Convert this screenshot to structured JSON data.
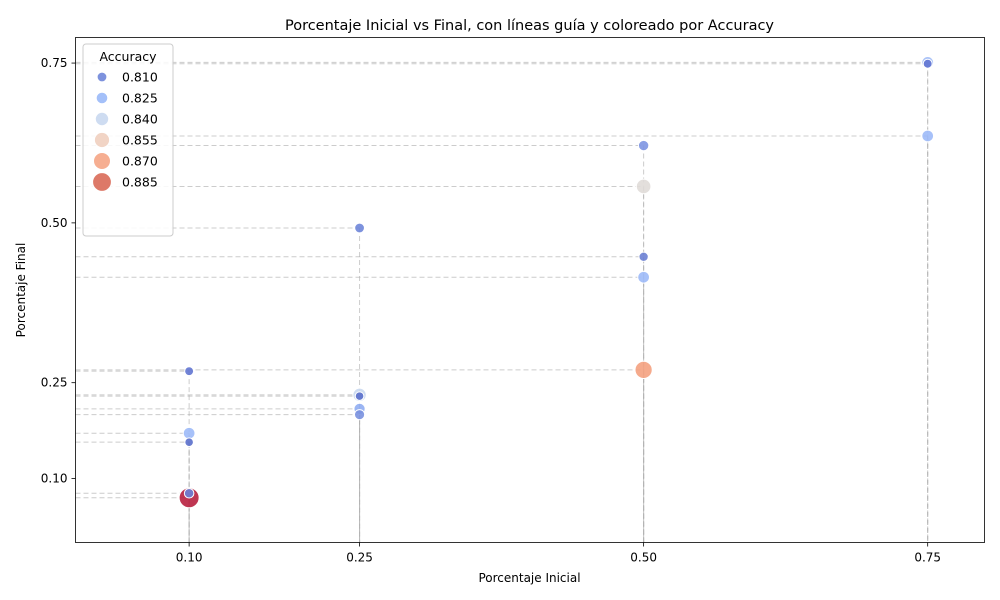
{
  "chart_data": {
    "type": "scatter",
    "title": "Porcentaje Inicial vs Final, con líneas guía y coloreado por Accuracy",
    "xlabel": "Porcentaje Inicial",
    "ylabel": "Porcentaje Final",
    "xlim": [
      0.0,
      0.8
    ],
    "ylim": [
      0.0,
      0.79
    ],
    "xticks": [
      0.1,
      0.25,
      0.5,
      0.75
    ],
    "xtick_labels": [
      "0.10",
      "0.25",
      "0.50",
      "0.75"
    ],
    "yticks": [
      0.1,
      0.25,
      0.5,
      0.75
    ],
    "ytick_labels": [
      "0.10",
      "0.25",
      "0.50",
      "0.75"
    ],
    "guide_lines": true,
    "grid": false,
    "legend": {
      "title": "Accuracy",
      "placement": "top-left",
      "entries": [
        {
          "label": "0.810",
          "value": 0.81,
          "color": "#6f86d9"
        },
        {
          "label": "0.825",
          "value": 0.825,
          "color": "#9ab9f8"
        },
        {
          "label": "0.840",
          "value": 0.84,
          "color": "#c9d8f0"
        },
        {
          "label": "0.855",
          "value": 0.855,
          "color": "#efcfbf"
        },
        {
          "label": "0.870",
          "value": 0.87,
          "color": "#f5a585"
        },
        {
          "label": "0.885",
          "value": 0.885,
          "color": "#d96a58"
        }
      ]
    },
    "points": [
      {
        "x": 0.1,
        "y": 0.07,
        "accuracy": 0.895,
        "color": "#b8203f"
      },
      {
        "x": 0.1,
        "y": 0.077,
        "accuracy": 0.808,
        "color": "#6b7fd6"
      },
      {
        "x": 0.1,
        "y": 0.157,
        "accuracy": 0.8,
        "color": "#5a6fcb"
      },
      {
        "x": 0.1,
        "y": 0.171,
        "accuracy": 0.826,
        "color": "#9dbaf8"
      },
      {
        "x": 0.1,
        "y": 0.268,
        "accuracy": 0.803,
        "color": "#6275d1"
      },
      {
        "x": 0.25,
        "y": 0.2,
        "accuracy": 0.813,
        "color": "#7a91df"
      },
      {
        "x": 0.25,
        "y": 0.209,
        "accuracy": 0.822,
        "color": "#90adf2"
      },
      {
        "x": 0.25,
        "y": 0.229,
        "accuracy": 0.8,
        "color": "#5a6fcb"
      },
      {
        "x": 0.25,
        "y": 0.231,
        "accuracy": 0.84,
        "color": "#c9d8f0"
      },
      {
        "x": 0.25,
        "y": 0.492,
        "accuracy": 0.81,
        "color": "#6f86d9"
      },
      {
        "x": 0.5,
        "y": 0.27,
        "accuracy": 0.872,
        "color": "#f4a180"
      },
      {
        "x": 0.5,
        "y": 0.415,
        "accuracy": 0.826,
        "color": "#9dbaf8"
      },
      {
        "x": 0.5,
        "y": 0.447,
        "accuracy": 0.806,
        "color": "#6a80d3"
      },
      {
        "x": 0.5,
        "y": 0.557,
        "accuracy": 0.85,
        "color": "#e0dbd8"
      },
      {
        "x": 0.5,
        "y": 0.621,
        "accuracy": 0.815,
        "color": "#7d95e2"
      },
      {
        "x": 0.75,
        "y": 0.636,
        "accuracy": 0.826,
        "color": "#9dbaf8"
      },
      {
        "x": 0.75,
        "y": 0.749,
        "accuracy": 0.803,
        "color": "#6275d1"
      },
      {
        "x": 0.75,
        "y": 0.751,
        "accuracy": 0.827,
        "color": "#a2bdf6"
      }
    ]
  }
}
